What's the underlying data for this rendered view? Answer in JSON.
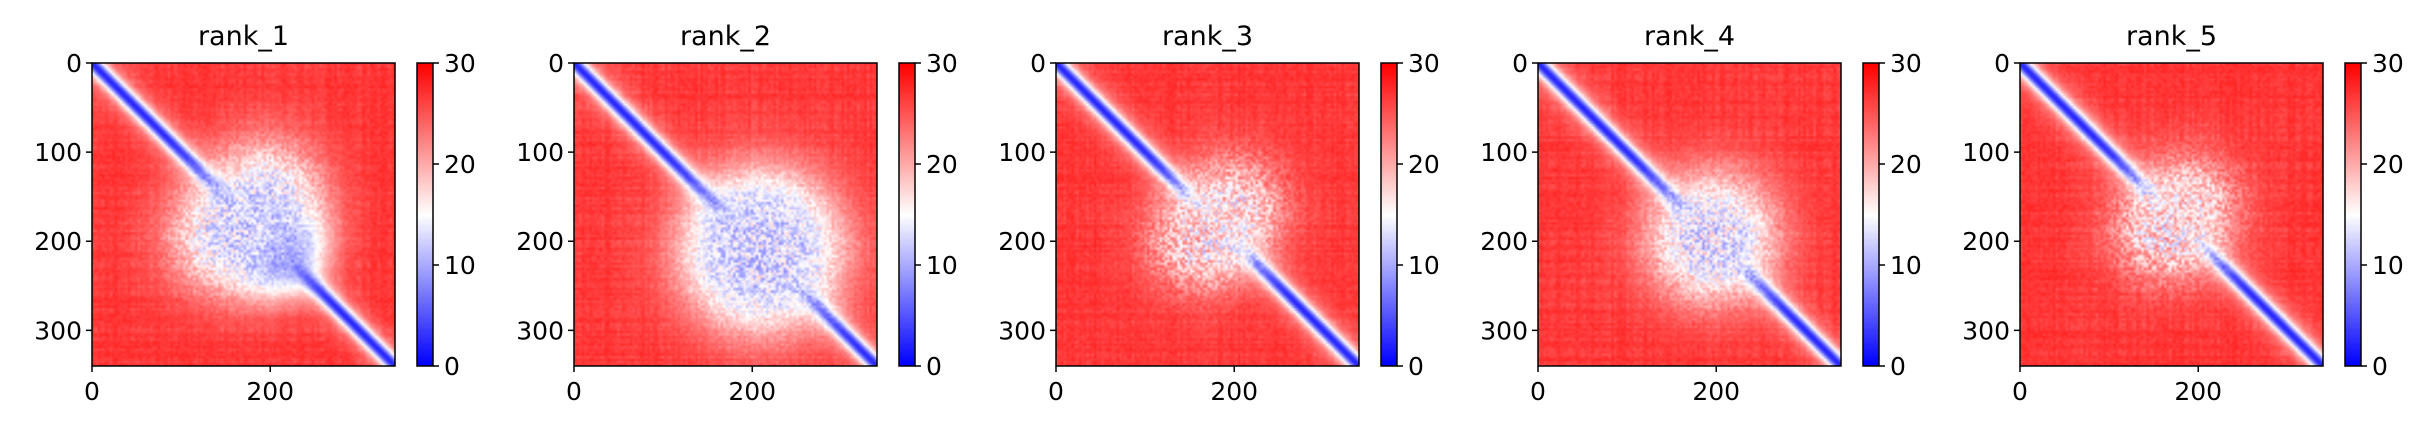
{
  "figure": {
    "background": "#ffffff",
    "colormap": {
      "name": "bwr",
      "low": "#0000ff",
      "mid": "#ffffff",
      "high": "#ff0000"
    }
  },
  "chart_data": [
    {
      "type": "heatmap",
      "title": "rank_1",
      "xlabel": "",
      "ylabel": "",
      "n": 340,
      "xlim": [
        0,
        340
      ],
      "ylim": [
        340,
        0
      ],
      "x_ticks": [
        0,
        200
      ],
      "y_ticks": [
        0,
        100,
        200,
        300
      ],
      "colorbar": {
        "range": [
          0,
          30
        ],
        "ticks": [
          0,
          10,
          20,
          30
        ]
      },
      "diagonal_value": 2,
      "background_value": 28,
      "blocks": [
        {
          "center": [
            205,
            205
          ],
          "spread": 32,
          "value": 7
        },
        {
          "center": [
            195,
            150
          ],
          "spread": 45,
          "value": 13
        }
      ]
    },
    {
      "type": "heatmap",
      "title": "rank_2",
      "xlabel": "",
      "ylabel": "",
      "n": 340,
      "xlim": [
        0,
        340
      ],
      "ylim": [
        340,
        0
      ],
      "x_ticks": [
        0,
        200
      ],
      "y_ticks": [
        0,
        100,
        200,
        300
      ],
      "colorbar": {
        "range": [
          0,
          30
        ],
        "ticks": [
          0,
          10,
          20,
          30
        ]
      },
      "diagonal_value": 2,
      "background_value": 28,
      "blocks": [
        {
          "center": [
            205,
            205
          ],
          "spread": 38,
          "value": 6
        },
        {
          "center": [
            215,
            210
          ],
          "spread": 55,
          "value": 13
        }
      ]
    },
    {
      "type": "heatmap",
      "title": "rank_3",
      "xlabel": "",
      "ylabel": "",
      "n": 340,
      "xlim": [
        0,
        340
      ],
      "ylim": [
        340,
        0
      ],
      "x_ticks": [
        0,
        200
      ],
      "y_ticks": [
        0,
        100,
        200,
        300
      ],
      "colorbar": {
        "range": [
          0,
          30
        ],
        "ticks": [
          0,
          10,
          20,
          30
        ]
      },
      "diagonal_value": 2,
      "background_value": 28,
      "blocks": [
        {
          "center": [
            185,
            185
          ],
          "spread": 25,
          "value": 9
        },
        {
          "center": [
            200,
            160
          ],
          "spread": 40,
          "value": 17
        }
      ]
    },
    {
      "type": "heatmap",
      "title": "rank_4",
      "xlabel": "",
      "ylabel": "",
      "n": 340,
      "xlim": [
        0,
        340
      ],
      "ylim": [
        340,
        0
      ],
      "x_ticks": [
        0,
        200
      ],
      "y_ticks": [
        0,
        100,
        200,
        300
      ],
      "colorbar": {
        "range": [
          0,
          30
        ],
        "ticks": [
          0,
          10,
          20,
          30
        ]
      },
      "diagonal_value": 2,
      "background_value": 28,
      "blocks": [
        {
          "center": [
            205,
            200
          ],
          "spread": 20,
          "value": 4
        },
        {
          "center": [
            200,
            190
          ],
          "spread": 45,
          "value": 14
        }
      ]
    },
    {
      "type": "heatmap",
      "title": "rank_5",
      "xlabel": "",
      "ylabel": "",
      "n": 340,
      "xlim": [
        0,
        340
      ],
      "ylim": [
        340,
        0
      ],
      "x_ticks": [
        0,
        200
      ],
      "y_ticks": [
        0,
        100,
        200,
        300
      ],
      "colorbar": {
        "range": [
          0,
          30
        ],
        "ticks": [
          0,
          10,
          20,
          30
        ]
      },
      "diagonal_value": 2,
      "background_value": 28,
      "blocks": [
        {
          "center": [
            175,
            175
          ],
          "spread": 22,
          "value": 10
        },
        {
          "center": [
            190,
            160
          ],
          "spread": 40,
          "value": 17
        }
      ]
    }
  ]
}
